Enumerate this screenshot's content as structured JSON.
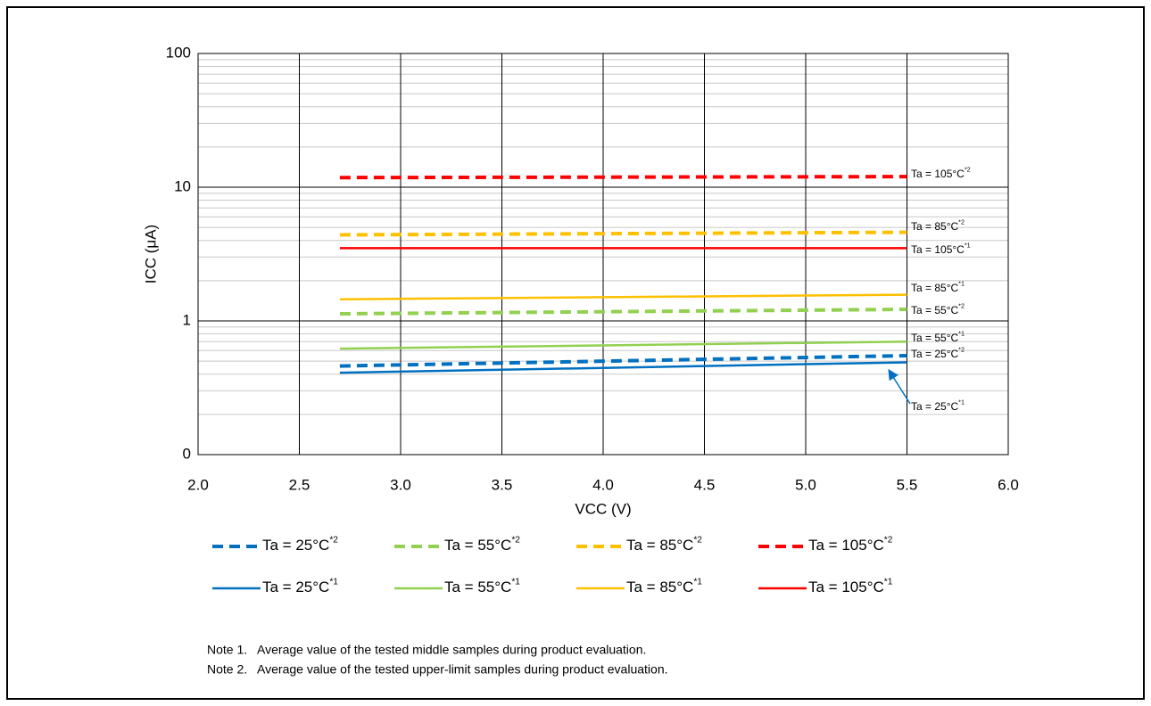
{
  "chart_data": {
    "type": "line",
    "x_label": "VCC (V)",
    "y_label": "ICC (μA)",
    "x": [
      2.7,
      5.5
    ],
    "xlim": [
      2,
      6
    ],
    "xticks": [
      {
        "value": 2,
        "label": "2.0"
      },
      2.5,
      {
        "value": 3,
        "label": "3.0"
      },
      3.5,
      {
        "value": 4,
        "label": "4.0"
      },
      4.5,
      {
        "value": 5,
        "label": "5.0"
      },
      5.5,
      {
        "value": 6,
        "label": "6.0"
      }
    ],
    "ylim": [
      0.1,
      100
    ],
    "yticks": [
      {
        "value": 0.1,
        "label": "0"
      },
      1,
      10,
      100
    ],
    "log_y": true,
    "grid": true,
    "minor_grid": true,
    "series": [
      {
        "name": "Ta = 25°C",
        "superscript": "*2",
        "color": "#0070c0",
        "dashed": true,
        "values": [
          0.46,
          0.55
        ]
      },
      {
        "name": "Ta = 55°C",
        "superscript": "*2",
        "color": "#92d050",
        "dashed": true,
        "values": [
          1.13,
          1.22
        ]
      },
      {
        "name": "Ta = 85°C",
        "superscript": "*2",
        "color": "#ffc000",
        "dashed": true,
        "values": [
          4.4,
          4.6
        ]
      },
      {
        "name": "Ta = 105°C",
        "superscript": "*2",
        "color": "#ff0000",
        "dashed": true,
        "values": [
          11.8,
          12.0
        ]
      },
      {
        "name": "Ta = 25°C",
        "superscript": "*1",
        "color": "#0070c0",
        "dashed": false,
        "values": [
          0.41,
          0.49
        ]
      },
      {
        "name": "Ta = 55°C",
        "superscript": "*1",
        "color": "#92d050",
        "dashed": false,
        "values": [
          0.62,
          0.7
        ]
      },
      {
        "name": "Ta = 85°C",
        "superscript": "*1",
        "color": "#ffc000",
        "dashed": false,
        "values": [
          1.45,
          1.57
        ]
      },
      {
        "name": "Ta = 105°C",
        "superscript": "*1",
        "color": "#ff0000",
        "dashed": false,
        "values": [
          3.5,
          3.5
        ]
      }
    ],
    "notes": [
      "Note 1.   Average value of the tested middle samples during product evaluation.",
      "Note 2.   Average value of the tested upper-limit samples during product evaluation."
    ]
  }
}
